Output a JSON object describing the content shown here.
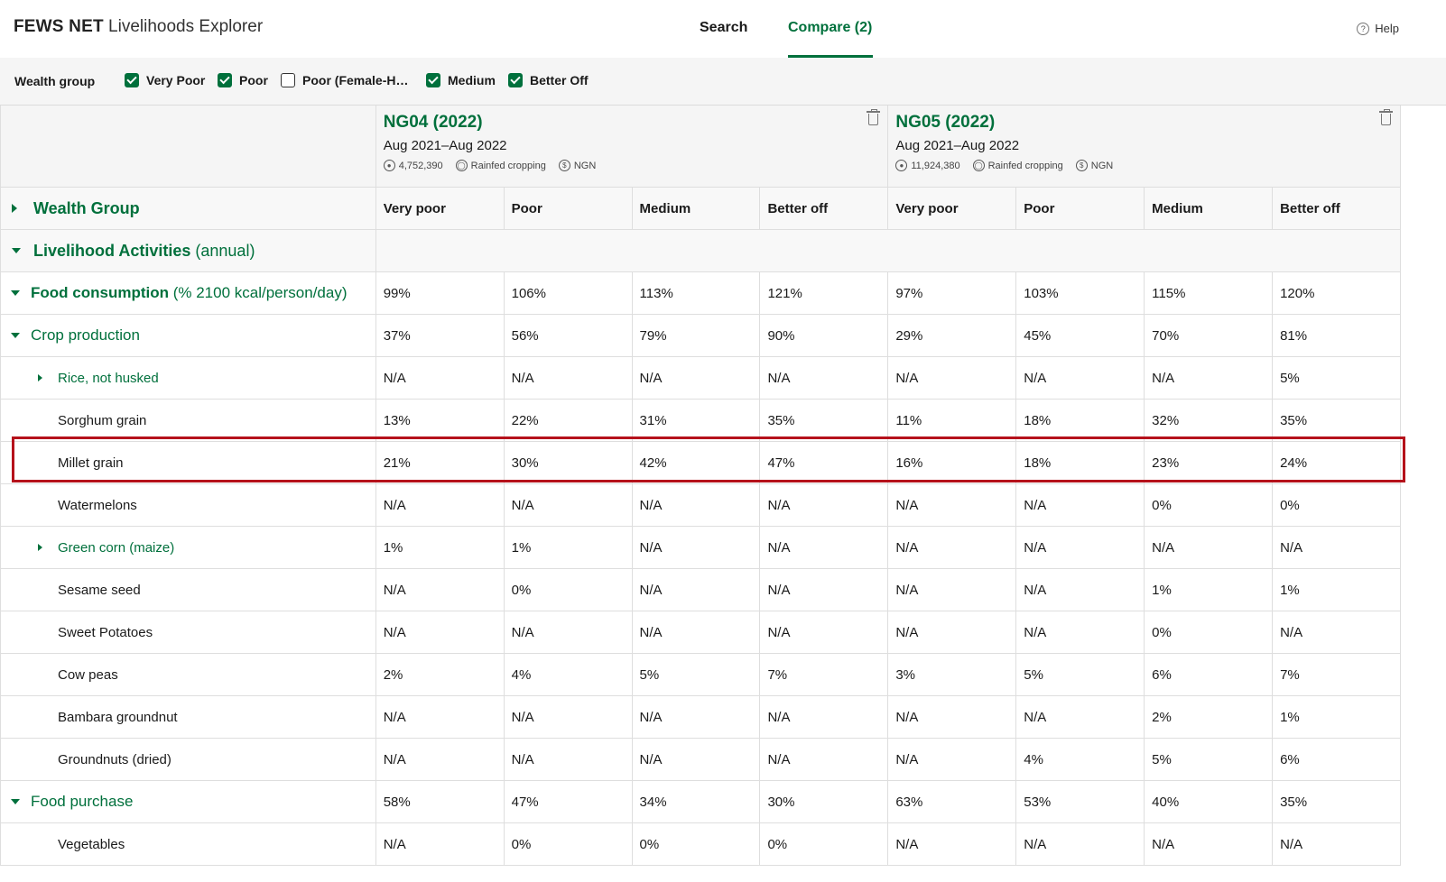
{
  "header": {
    "brand_bold": "FEWS NET",
    "brand_light": "Livelihoods Explorer",
    "tabs": [
      {
        "label": "Search"
      },
      {
        "label": "Compare (2)"
      }
    ],
    "help_label": "Help"
  },
  "filters": {
    "label": "Wealth group",
    "options": [
      {
        "label": "Very Poor",
        "checked": true
      },
      {
        "label": "Poor",
        "checked": true
      },
      {
        "label": "Poor (Female-H…",
        "checked": false
      },
      {
        "label": "Medium",
        "checked": true
      },
      {
        "label": "Better Off",
        "checked": true
      }
    ]
  },
  "areas": [
    {
      "title": "NG04 (2022)",
      "period": "Aug 2021–Aug 2022",
      "population": "4,752,390",
      "zone_type": "Rainfed cropping",
      "currency": "NGN"
    },
    {
      "title": "NG05 (2022)",
      "period": "Aug 2021–Aug 2022",
      "population": "11,924,380",
      "zone_type": "Rainfed cropping",
      "currency": "NGN"
    }
  ],
  "table": {
    "wealth_group_label": "Wealth Group",
    "columns": [
      "Very poor",
      "Poor",
      "Medium",
      "Better off",
      "Very poor",
      "Poor",
      "Medium",
      "Better off"
    ],
    "section": {
      "label": "Livelihood Activities",
      "sub": "(annual)"
    },
    "food_consumption": {
      "label": "Food consumption",
      "sub": "(% 2100 kcal/person/day)",
      "values": [
        "99%",
        "106%",
        "113%",
        "121%",
        "97%",
        "103%",
        "115%",
        "120%"
      ]
    },
    "crop_production": {
      "label": "Crop production",
      "values": [
        "37%",
        "56%",
        "79%",
        "90%",
        "29%",
        "45%",
        "70%",
        "81%"
      ]
    },
    "crop_items": [
      {
        "label": "Rice, not husked",
        "expandable": true,
        "values": [
          "N/A",
          "N/A",
          "N/A",
          "N/A",
          "N/A",
          "N/A",
          "N/A",
          "5%"
        ]
      },
      {
        "label": "Sorghum grain",
        "expandable": false,
        "values": [
          "13%",
          "22%",
          "31%",
          "35%",
          "11%",
          "18%",
          "32%",
          "35%"
        ]
      },
      {
        "label": "Millet grain",
        "expandable": false,
        "values": [
          "21%",
          "30%",
          "42%",
          "47%",
          "16%",
          "18%",
          "23%",
          "24%"
        ]
      },
      {
        "label": "Watermelons",
        "expandable": false,
        "values": [
          "N/A",
          "N/A",
          "N/A",
          "N/A",
          "N/A",
          "N/A",
          "0%",
          "0%"
        ]
      },
      {
        "label": "Green corn (maize)",
        "expandable": true,
        "values": [
          "1%",
          "1%",
          "N/A",
          "N/A",
          "N/A",
          "N/A",
          "N/A",
          "N/A"
        ]
      },
      {
        "label": "Sesame seed",
        "expandable": false,
        "values": [
          "N/A",
          "0%",
          "N/A",
          "N/A",
          "N/A",
          "N/A",
          "1%",
          "1%"
        ]
      },
      {
        "label": "Sweet Potatoes",
        "expandable": false,
        "values": [
          "N/A",
          "N/A",
          "N/A",
          "N/A",
          "N/A",
          "N/A",
          "0%",
          "N/A"
        ]
      },
      {
        "label": "Cow peas",
        "expandable": false,
        "values": [
          "2%",
          "4%",
          "5%",
          "7%",
          "3%",
          "5%",
          "6%",
          "7%"
        ]
      },
      {
        "label": "Bambara groundnut",
        "expandable": false,
        "values": [
          "N/A",
          "N/A",
          "N/A",
          "N/A",
          "N/A",
          "N/A",
          "2%",
          "1%"
        ]
      },
      {
        "label": "Groundnuts (dried)",
        "expandable": false,
        "values": [
          "N/A",
          "N/A",
          "N/A",
          "N/A",
          "N/A",
          "4%",
          "5%",
          "6%"
        ]
      }
    ],
    "food_purchase": {
      "label": "Food purchase",
      "values": [
        "58%",
        "47%",
        "34%",
        "30%",
        "63%",
        "53%",
        "40%",
        "35%"
      ]
    },
    "purchase_items": [
      {
        "label": "Vegetables",
        "expandable": false,
        "values": [
          "N/A",
          "0%",
          "0%",
          "0%",
          "N/A",
          "N/A",
          "N/A",
          "N/A"
        ]
      }
    ]
  },
  "colors": {
    "accent": "#00703c",
    "highlight": "#b5121b"
  }
}
